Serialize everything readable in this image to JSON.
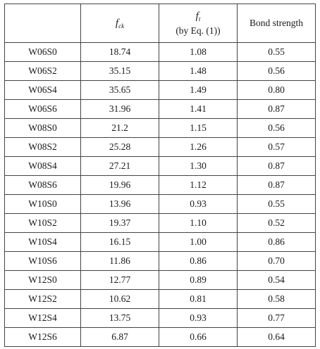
{
  "headers": {
    "specimen": "",
    "fck_symbol": "f",
    "fck_sub": "ck",
    "ft_symbol": "f",
    "ft_sub": "t",
    "ft_note": "(by Eq. (1))",
    "bond": "Bond strength"
  },
  "rows": [
    {
      "id": "W06S0",
      "fck": "18.74",
      "ft": "1.08",
      "bond": "0.55"
    },
    {
      "id": "W06S2",
      "fck": "35.15",
      "ft": "1.48",
      "bond": "0.56"
    },
    {
      "id": "W06S4",
      "fck": "35.65",
      "ft": "1.49",
      "bond": "0.80"
    },
    {
      "id": "W06S6",
      "fck": "31.96",
      "ft": "1.41",
      "bond": "0.87"
    },
    {
      "id": "W08S0",
      "fck": "21.2",
      "ft": "1.15",
      "bond": "0.56"
    },
    {
      "id": "W08S2",
      "fck": "25.28",
      "ft": "1.26",
      "bond": "0.57"
    },
    {
      "id": "W08S4",
      "fck": "27.21",
      "ft": "1.30",
      "bond": "0.87"
    },
    {
      "id": "W08S6",
      "fck": "19.96",
      "ft": "1.12",
      "bond": "0.87"
    },
    {
      "id": "W10S0",
      "fck": "13.96",
      "ft": "0.93",
      "bond": "0.55"
    },
    {
      "id": "W10S2",
      "fck": "19.37",
      "ft": "1.10",
      "bond": "0.52"
    },
    {
      "id": "W10S4",
      "fck": "16.15",
      "ft": "1.00",
      "bond": "0.86"
    },
    {
      "id": "W10S6",
      "fck": "11.86",
      "ft": "0.86",
      "bond": "0.70"
    },
    {
      "id": "W12S0",
      "fck": "12.77",
      "ft": "0.89",
      "bond": "0.54"
    },
    {
      "id": "W12S2",
      "fck": "10.62",
      "ft": "0.81",
      "bond": "0.58"
    },
    {
      "id": "W12S4",
      "fck": "13.75",
      "ft": "0.93",
      "bond": "0.77"
    },
    {
      "id": "W12S6",
      "fck": "6.87",
      "ft": "0.66",
      "bond": "0.64"
    }
  ]
}
